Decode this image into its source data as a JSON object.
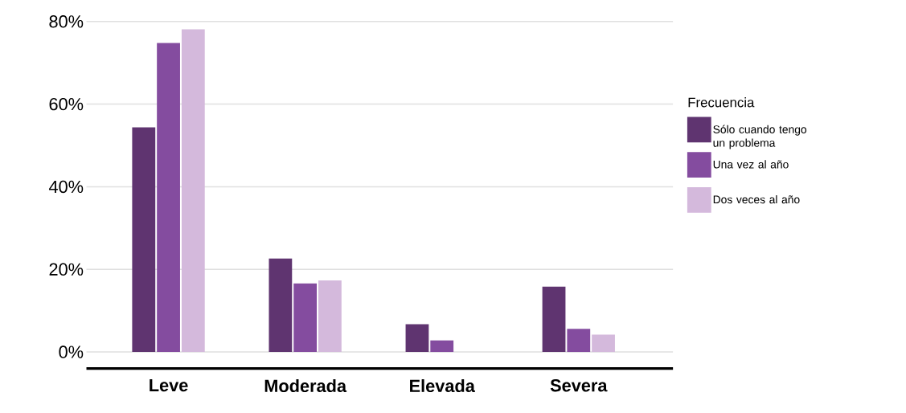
{
  "chart_data": {
    "type": "bar",
    "categories": [
      "Leve",
      "Moderada",
      "Elevada",
      "Severa"
    ],
    "series": [
      {
        "name": "Sólo cuando tengo un problema",
        "color": "#5f3470",
        "values": [
          54.4,
          22.6,
          6.7,
          15.8
        ]
      },
      {
        "name": "Una vez al año",
        "color": "#844c9f",
        "values": [
          74.8,
          16.6,
          2.8,
          5.6
        ]
      },
      {
        "name": "Dos veces al año",
        "color": "#d4b9dc",
        "values": [
          78.1,
          17.3,
          null,
          4.2
        ]
      }
    ],
    "legend_title": "Frecuencia",
    "ylim": [
      -4,
      80
    ],
    "yticks": [
      {
        "value": 0,
        "label": "0%"
      },
      {
        "value": 20,
        "label": "20%"
      },
      {
        "value": 40,
        "label": "40%"
      },
      {
        "value": 60,
        "label": "60%"
      },
      {
        "value": 80,
        "label": "80%"
      }
    ],
    "grid": "y",
    "legend": "right"
  }
}
